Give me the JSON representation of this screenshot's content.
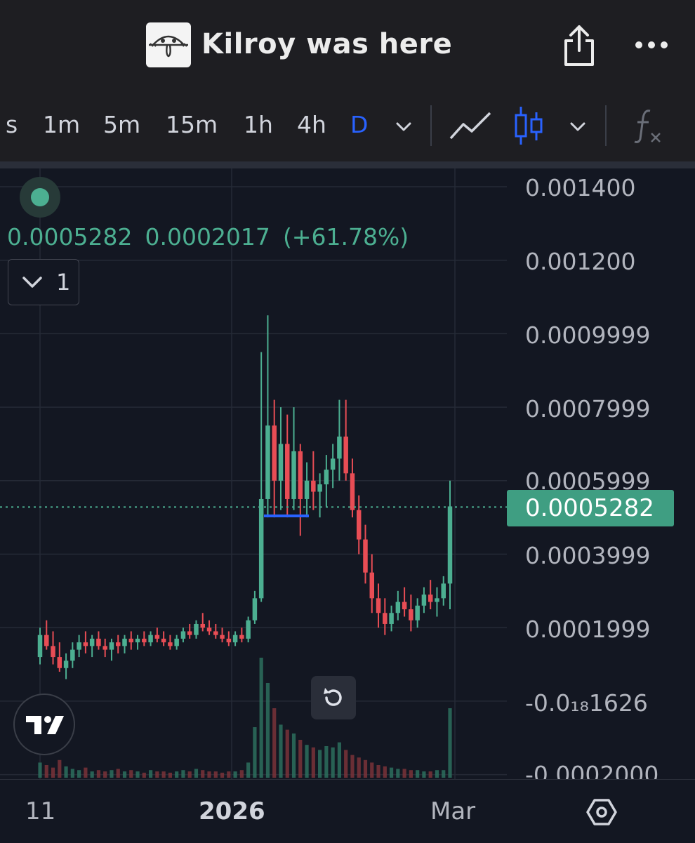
{
  "header": {
    "title": "Kilroy was here",
    "logo_icon": "kilroy-logo",
    "share_icon": "share-icon",
    "more_icon": "more-icon"
  },
  "toolbar": {
    "timeframes": [
      "s",
      "1m",
      "5m",
      "15m",
      "1h",
      "4h",
      "D"
    ],
    "active_timeframe": "D",
    "accent_color": "#2962ff"
  },
  "legend": {
    "price": "0.0005282",
    "change": "0.0002017",
    "change_pct": "(+61.78%)",
    "collapse_count": "1",
    "up_color": "#4caf91",
    "down_color": "#e84d55"
  },
  "price_axis": {
    "labels": [
      "0.001400",
      "0.001200",
      "0.0009999",
      "0.0007999",
      "0.0005999",
      "0.0003999",
      "0.0001999",
      "-0.0₁₈1626",
      "-0.0002000"
    ],
    "current_price": "0.0005282"
  },
  "time_axis": {
    "labels": [
      "11",
      "2026",
      "Mar"
    ]
  },
  "chart_data": {
    "type": "candlestick",
    "ylim": [
      -0.0002,
      0.0014
    ],
    "last_price": 0.0005282,
    "candles_ohlc": [
      [
        0.00012,
        0.0002,
        0.0001,
        0.00018
      ],
      [
        0.00018,
        0.00022,
        0.00014,
        0.00015
      ],
      [
        0.00015,
        0.00019,
        0.0001,
        0.00012
      ],
      [
        0.00012,
        0.00016,
        8e-05,
        9e-05
      ],
      [
        9e-05,
        0.00013,
        6e-05,
        0.00011
      ],
      [
        0.00011,
        0.00016,
        9e-05,
        0.00014
      ],
      [
        0.00014,
        0.00018,
        0.00012,
        0.00016
      ],
      [
        0.00016,
        0.00019,
        0.00013,
        0.00015
      ],
      [
        0.00015,
        0.00018,
        0.00012,
        0.00017
      ],
      [
        0.00017,
        0.00019,
        0.00014,
        0.00015
      ],
      [
        0.00015,
        0.00017,
        0.00012,
        0.00014
      ],
      [
        0.00014,
        0.00017,
        0.00011,
        0.00016
      ],
      [
        0.00016,
        0.00018,
        0.00013,
        0.00015
      ],
      [
        0.00015,
        0.00018,
        0.00013,
        0.00017
      ],
      [
        0.00017,
        0.00019,
        0.00014,
        0.00016
      ],
      [
        0.00016,
        0.00018,
        0.00014,
        0.00017
      ],
      [
        0.00017,
        0.00019,
        0.00015,
        0.00016
      ],
      [
        0.00016,
        0.00019,
        0.00015,
        0.00018
      ],
      [
        0.00018,
        0.0002,
        0.00016,
        0.00017
      ],
      [
        0.00017,
        0.00019,
        0.00015,
        0.00016
      ],
      [
        0.00016,
        0.00018,
        0.00014,
        0.00015
      ],
      [
        0.00015,
        0.00018,
        0.00014,
        0.00017
      ],
      [
        0.00017,
        0.0002,
        0.00016,
        0.00019
      ],
      [
        0.00019,
        0.00021,
        0.00017,
        0.00018
      ],
      [
        0.00018,
        0.00022,
        0.00017,
        0.00021
      ],
      [
        0.00021,
        0.00024,
        0.00019,
        0.0002
      ],
      [
        0.0002,
        0.00022,
        0.00018,
        0.00019
      ],
      [
        0.00019,
        0.00021,
        0.00017,
        0.00018
      ],
      [
        0.00018,
        0.0002,
        0.00016,
        0.00017
      ],
      [
        0.00017,
        0.00019,
        0.00015,
        0.00016
      ],
      [
        0.00016,
        0.00019,
        0.00015,
        0.00018
      ],
      [
        0.00018,
        0.0002,
        0.00016,
        0.00017
      ],
      [
        0.00017,
        0.00023,
        0.00016,
        0.00022
      ],
      [
        0.00022,
        0.0003,
        0.00021,
        0.00028
      ],
      [
        0.00028,
        0.00095,
        0.00027,
        0.00055
      ],
      [
        0.00055,
        0.00105,
        0.0005,
        0.00075
      ],
      [
        0.00075,
        0.00082,
        0.0005,
        0.0006
      ],
      [
        0.0006,
        0.0008,
        0.00052,
        0.0007
      ],
      [
        0.0007,
        0.00078,
        0.0005,
        0.00055
      ],
      [
        0.00055,
        0.0008,
        0.00052,
        0.00068
      ],
      [
        0.00068,
        0.0007,
        0.00045,
        0.00055
      ],
      [
        0.00055,
        0.00065,
        0.0005,
        0.0006
      ],
      [
        0.0006,
        0.00068,
        0.00052,
        0.00057
      ],
      [
        0.00057,
        0.00062,
        0.0005,
        0.00059
      ],
      [
        0.00059,
        0.00067,
        0.00053,
        0.00063
      ],
      [
        0.00063,
        0.0007,
        0.00058,
        0.00066
      ],
      [
        0.00066,
        0.00082,
        0.0006,
        0.00072
      ],
      [
        0.00072,
        0.00082,
        0.0006,
        0.00062
      ],
      [
        0.00062,
        0.00066,
        0.0005,
        0.00052
      ],
      [
        0.00052,
        0.00056,
        0.0004,
        0.00044
      ],
      [
        0.00044,
        0.00048,
        0.00032,
        0.00035
      ],
      [
        0.00035,
        0.0004,
        0.00024,
        0.00028
      ],
      [
        0.00028,
        0.00032,
        0.0002,
        0.00024
      ],
      [
        0.00024,
        0.00028,
        0.00018,
        0.00021
      ],
      [
        0.00021,
        0.00026,
        0.00019,
        0.00024
      ],
      [
        0.00024,
        0.0003,
        0.00022,
        0.00027
      ],
      [
        0.00027,
        0.00031,
        0.00023,
        0.00025
      ],
      [
        0.00025,
        0.00029,
        0.00019,
        0.00022
      ],
      [
        0.00022,
        0.00028,
        0.0002,
        0.00026
      ],
      [
        0.00026,
        0.00031,
        0.00024,
        0.00029
      ],
      [
        0.00029,
        0.00033,
        0.00025,
        0.00027
      ],
      [
        0.00027,
        0.00031,
        0.00023,
        0.00028
      ],
      [
        0.00028,
        0.00034,
        0.00026,
        0.00032
      ],
      [
        0.00032,
        0.0006,
        0.00025,
        0.00053
      ]
    ],
    "volume_relative": [
      0.12,
      0.1,
      0.08,
      0.14,
      0.09,
      0.07,
      0.06,
      0.08,
      0.05,
      0.06,
      0.05,
      0.06,
      0.07,
      0.05,
      0.06,
      0.05,
      0.04,
      0.06,
      0.05,
      0.05,
      0.04,
      0.05,
      0.06,
      0.05,
      0.07,
      0.06,
      0.05,
      0.05,
      0.04,
      0.05,
      0.05,
      0.06,
      0.12,
      0.4,
      0.95,
      0.75,
      0.55,
      0.42,
      0.38,
      0.35,
      0.3,
      0.26,
      0.24,
      0.22,
      0.25,
      0.24,
      0.28,
      0.22,
      0.18,
      0.16,
      0.14,
      0.12,
      0.1,
      0.09,
      0.08,
      0.07,
      0.07,
      0.06,
      0.06,
      0.05,
      0.05,
      0.06,
      0.06,
      0.55
    ]
  }
}
